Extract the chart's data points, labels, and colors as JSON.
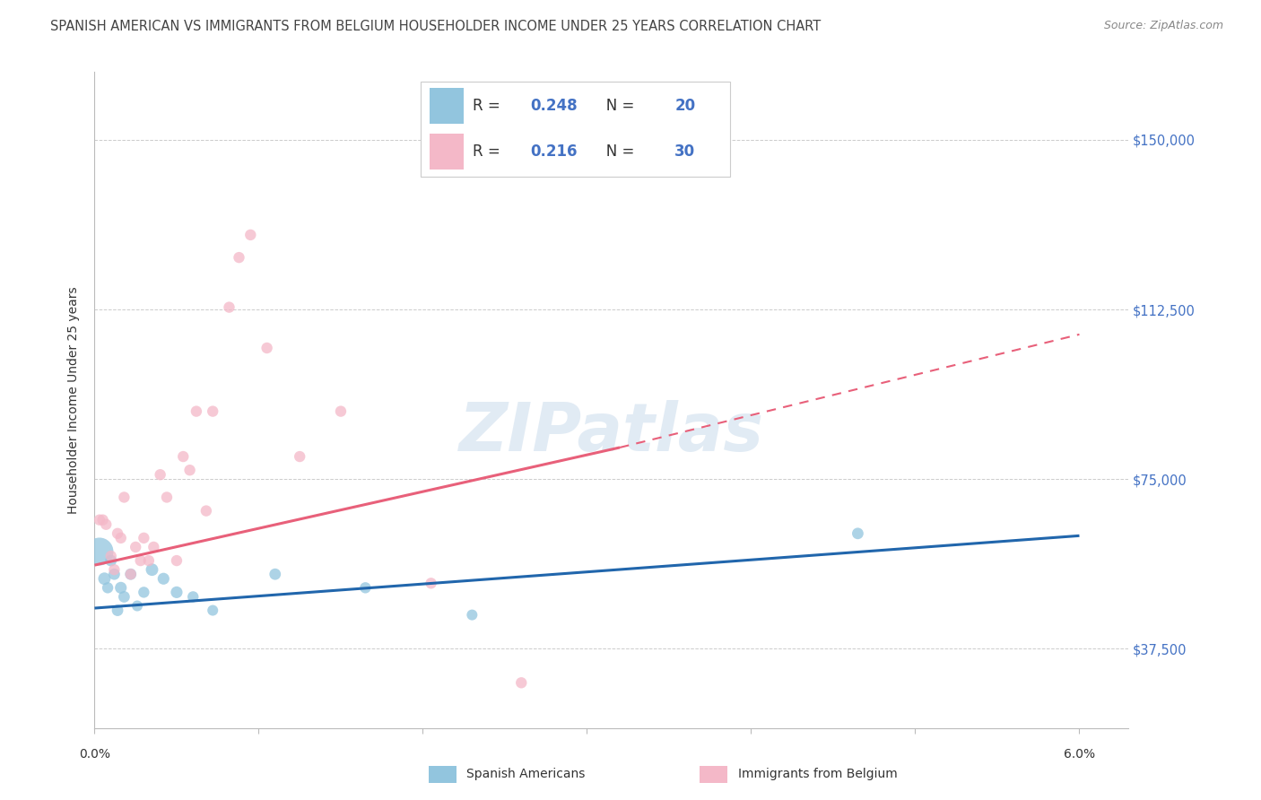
{
  "title": "SPANISH AMERICAN VS IMMIGRANTS FROM BELGIUM HOUSEHOLDER INCOME UNDER 25 YEARS CORRELATION CHART",
  "source": "Source: ZipAtlas.com",
  "ylabel": "Householder Income Under 25 years",
  "xlim": [
    0.0,
    6.3
  ],
  "ylim": [
    20000,
    165000
  ],
  "yticks": [
    37500,
    75000,
    112500,
    150000
  ],
  "ytick_labels": [
    "$37,500",
    "$75,000",
    "$112,500",
    "$150,000"
  ],
  "xticks": [
    0,
    1,
    2,
    3,
    4,
    5,
    6
  ],
  "grid_color": "#cccccc",
  "watermark_text": "ZIPatlas",
  "legend_r_blue": "0.248",
  "legend_n_blue": "20",
  "legend_r_pink": "0.216",
  "legend_n_pink": "30",
  "blue_color": "#92c5de",
  "pink_color": "#f4b8c8",
  "blue_line_color": "#2166ac",
  "pink_line_color": "#e8607a",
  "blue_scatter_x": [
    0.03,
    0.06,
    0.08,
    0.1,
    0.12,
    0.14,
    0.16,
    0.18,
    0.22,
    0.26,
    0.3,
    0.35,
    0.42,
    0.5,
    0.6,
    0.72,
    1.1,
    1.65,
    2.3,
    4.65
  ],
  "blue_scatter_y": [
    59000,
    53000,
    51000,
    57000,
    54000,
    46000,
    51000,
    49000,
    54000,
    47000,
    50000,
    55000,
    53000,
    50000,
    49000,
    46000,
    54000,
    51000,
    45000,
    63000
  ],
  "blue_scatter_sizes": [
    500,
    100,
    80,
    85,
    85,
    85,
    90,
    85,
    85,
    75,
    80,
    100,
    90,
    90,
    80,
    75,
    85,
    80,
    75,
    85
  ],
  "pink_scatter_x": [
    0.03,
    0.05,
    0.07,
    0.1,
    0.12,
    0.14,
    0.16,
    0.18,
    0.22,
    0.25,
    0.28,
    0.3,
    0.33,
    0.36,
    0.4,
    0.44,
    0.5,
    0.54,
    0.58,
    0.62,
    0.68,
    0.72,
    0.82,
    0.88,
    0.95,
    1.05,
    1.25,
    1.5,
    2.05,
    2.6
  ],
  "pink_scatter_y": [
    66000,
    66000,
    65000,
    58000,
    55000,
    63000,
    62000,
    71000,
    54000,
    60000,
    57000,
    62000,
    57000,
    60000,
    76000,
    71000,
    57000,
    80000,
    77000,
    90000,
    68000,
    90000,
    113000,
    124000,
    129000,
    104000,
    80000,
    90000,
    52000,
    30000
  ],
  "pink_scatter_sizes": [
    80,
    80,
    80,
    80,
    80,
    80,
    80,
    80,
    80,
    80,
    80,
    80,
    80,
    80,
    80,
    80,
    80,
    80,
    80,
    80,
    80,
    80,
    80,
    80,
    80,
    80,
    80,
    80,
    80,
    80
  ],
  "blue_line_x0": 0.0,
  "blue_line_x1": 6.0,
  "blue_line_y0": 46500,
  "blue_line_y1": 62500,
  "pink_solid_x0": 0.0,
  "pink_solid_x1": 3.2,
  "pink_solid_y0": 56000,
  "pink_solid_y1": 82000,
  "pink_dashed_x0": 3.2,
  "pink_dashed_x1": 6.0,
  "pink_dashed_y0": 82000,
  "pink_dashed_y1": 107000,
  "background_color": "#ffffff",
  "blue_label_color": "#4472c4",
  "title_color": "#444444",
  "title_fontsize": 10.5,
  "source_fontsize": 9,
  "legend_text_color": "#333333",
  "legend_value_color": "#4472c4",
  "legend_n_color": "#4472c4",
  "bottom_legend_label_blue": "Spanish Americans",
  "bottom_legend_label_pink": "Immigrants from Belgium"
}
